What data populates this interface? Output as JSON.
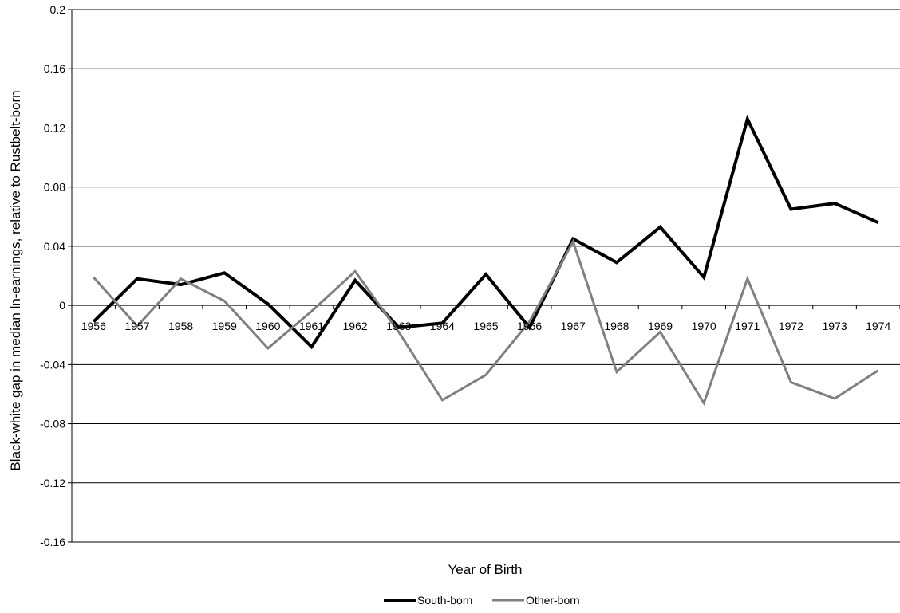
{
  "chart_data": {
    "type": "line",
    "title": "",
    "xlabel": "Year of Birth",
    "ylabel": "Black-white gap in median ln-earnings, relative to Rustbelt-born",
    "ylim": [
      -0.16,
      0.2
    ],
    "yticks": [
      "-0.16",
      "-0.12",
      "-0.08",
      "-0.04",
      "0",
      "0.04",
      "0.08",
      "0.12",
      "0.16",
      "0.2"
    ],
    "categories": [
      "1956",
      "1957",
      "1958",
      "1959",
      "1960",
      "1961",
      "1962",
      "1963",
      "1964",
      "1965",
      "1966",
      "1967",
      "1968",
      "1969",
      "1970",
      "1971",
      "1972",
      "1973",
      "1974"
    ],
    "grid": true,
    "legend_position": "bottom",
    "series": [
      {
        "name": "South-born",
        "color": "#000000",
        "values": [
          -0.011,
          0.018,
          0.014,
          0.022,
          0.001,
          -0.028,
          0.017,
          -0.015,
          -0.012,
          0.021,
          -0.015,
          0.045,
          0.029,
          0.053,
          0.019,
          0.126,
          0.065,
          0.069,
          0.056
        ]
      },
      {
        "name": "Other-born",
        "color": "#808080",
        "values": [
          0.019,
          -0.014,
          0.018,
          0.003,
          -0.029,
          -0.004,
          0.023,
          -0.018,
          -0.064,
          -0.047,
          -0.011,
          0.043,
          -0.045,
          -0.018,
          -0.066,
          0.018,
          -0.052,
          -0.063,
          -0.044
        ]
      }
    ]
  }
}
